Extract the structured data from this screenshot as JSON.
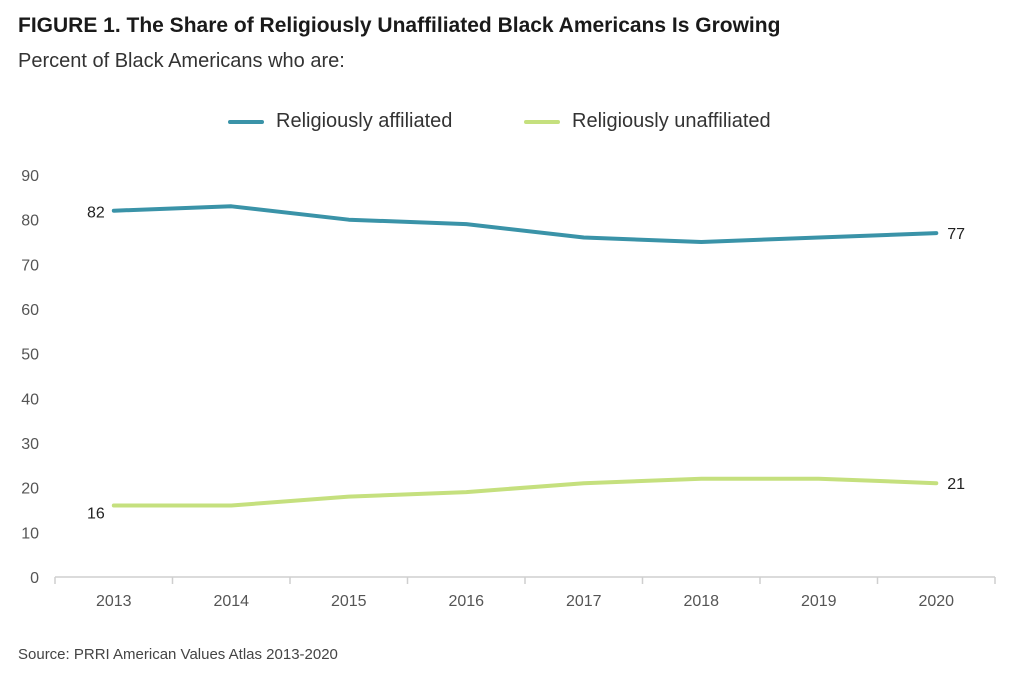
{
  "title": "FIGURE 1. The Share of Religiously Unaffiliated Black Americans Is Growing",
  "subtitle": "Percent of Black Americans who are:",
  "source": "Source: PRRI American Values Atlas 2013-2020",
  "colors": {
    "affiliated": "#3a93a8",
    "unaffiliated": "#c5e07e",
    "axis": "#cfcfcf",
    "tick_text": "#555555"
  },
  "chart_data": {
    "type": "line",
    "title": "FIGURE 1. The Share of Religiously Unaffiliated Black Americans Is Growing",
    "subtitle": "Percent of Black Americans who are:",
    "xlabel": "",
    "ylabel": "",
    "x": [
      "2013",
      "2014",
      "2015",
      "2016",
      "2017",
      "2018",
      "2019",
      "2020"
    ],
    "ylim": [
      0,
      90
    ],
    "yticks": [
      0,
      10,
      20,
      30,
      40,
      50,
      60,
      70,
      80,
      90
    ],
    "grid": false,
    "legend_position": "top-center",
    "series": [
      {
        "name": "Religiously affiliated",
        "color": "#3a93a8",
        "values": [
          82,
          83,
          80,
          79,
          76,
          75,
          76,
          77
        ],
        "labels": [
          {
            "index": 0,
            "text": "82",
            "side": "left"
          },
          {
            "index": 7,
            "text": "77",
            "side": "right"
          }
        ]
      },
      {
        "name": "Religiously unaffiliated",
        "color": "#c5e07e",
        "values": [
          16,
          16,
          18,
          19,
          21,
          22,
          22,
          21
        ],
        "labels": [
          {
            "index": 0,
            "text": "16",
            "side": "left"
          },
          {
            "index": 7,
            "text": "21",
            "side": "right"
          }
        ]
      }
    ]
  }
}
